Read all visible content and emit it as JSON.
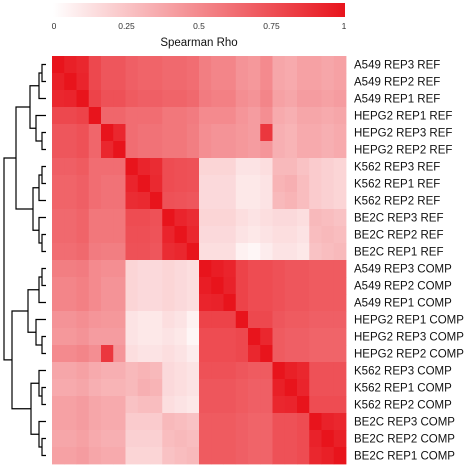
{
  "chart_data": {
    "type": "heatmap",
    "color_low": "#ffffff",
    "color_high": "#e8141c",
    "dendrogram_color": "#000000",
    "legend": {
      "title": "Spearman Rho",
      "placement": "top",
      "ticks": [
        "0",
        "0.25",
        "0.5",
        "0.75",
        "1"
      ],
      "range": [
        0,
        1
      ]
    },
    "rows": [
      "A549 REP3 REF",
      "A549 REP2 REF",
      "A549 REP1 REF",
      "HEPG2 REP1 REF",
      "HEPG2 REP3 REF",
      "HEPG2 REP2 REF",
      "K562 REP3 REF",
      "K562 REP1 REF",
      "K562 REP2 REF",
      "BE2C REP3 REF",
      "BE2C REP2 REF",
      "BE2C REP1 REF",
      "A549 REP3 COMP",
      "A549 REP2 COMP",
      "A549 REP1 COMP",
      "HEPG2 REP1 COMP",
      "HEPG2 REP3 COMP",
      "HEPG2 REP2 COMP",
      "K562 REP3 COMP",
      "K562 REP1 COMP",
      "K562 REP2 COMP",
      "BE2C REP3 COMP",
      "BE2C REP2 COMP",
      "BE2C REP1 COMP"
    ],
    "values": [
      [
        1.0,
        0.95,
        0.92,
        0.78,
        0.72,
        0.72,
        0.68,
        0.66,
        0.66,
        0.64,
        0.64,
        0.62,
        0.55,
        0.52,
        0.52,
        0.46,
        0.44,
        0.5,
        0.38,
        0.36,
        0.4,
        0.4,
        0.38,
        0.4
      ],
      [
        0.95,
        1.0,
        0.93,
        0.78,
        0.72,
        0.72,
        0.68,
        0.66,
        0.66,
        0.64,
        0.64,
        0.62,
        0.55,
        0.52,
        0.52,
        0.46,
        0.44,
        0.5,
        0.38,
        0.36,
        0.4,
        0.4,
        0.38,
        0.4
      ],
      [
        0.92,
        0.93,
        1.0,
        0.8,
        0.74,
        0.74,
        0.7,
        0.68,
        0.68,
        0.66,
        0.66,
        0.64,
        0.56,
        0.54,
        0.54,
        0.48,
        0.46,
        0.52,
        0.4,
        0.38,
        0.42,
        0.42,
        0.4,
        0.42
      ],
      [
        0.78,
        0.78,
        0.8,
        1.0,
        0.65,
        0.65,
        0.62,
        0.62,
        0.62,
        0.58,
        0.58,
        0.56,
        0.5,
        0.5,
        0.5,
        0.45,
        0.42,
        0.48,
        0.36,
        0.34,
        0.38,
        0.38,
        0.36,
        0.38
      ],
      [
        0.72,
        0.72,
        0.74,
        0.65,
        1.0,
        0.92,
        0.62,
        0.6,
        0.6,
        0.58,
        0.58,
        0.55,
        0.48,
        0.46,
        0.46,
        0.44,
        0.42,
        0.85,
        0.34,
        0.32,
        0.36,
        0.36,
        0.34,
        0.36
      ],
      [
        0.72,
        0.72,
        0.74,
        0.65,
        0.92,
        1.0,
        0.62,
        0.6,
        0.6,
        0.58,
        0.58,
        0.55,
        0.48,
        0.46,
        0.46,
        0.44,
        0.42,
        0.45,
        0.34,
        0.32,
        0.36,
        0.36,
        0.34,
        0.36
      ],
      [
        0.68,
        0.68,
        0.7,
        0.62,
        0.62,
        0.62,
        1.0,
        0.93,
        0.9,
        0.76,
        0.75,
        0.74,
        0.18,
        0.18,
        0.18,
        0.12,
        0.12,
        0.14,
        0.3,
        0.3,
        0.26,
        0.22,
        0.2,
        0.18
      ],
      [
        0.66,
        0.66,
        0.68,
        0.62,
        0.6,
        0.6,
        0.93,
        1.0,
        0.91,
        0.76,
        0.75,
        0.74,
        0.16,
        0.16,
        0.16,
        0.1,
        0.1,
        0.12,
        0.32,
        0.34,
        0.28,
        0.22,
        0.2,
        0.18
      ],
      [
        0.66,
        0.66,
        0.68,
        0.62,
        0.6,
        0.6,
        0.9,
        0.91,
        1.0,
        0.74,
        0.73,
        0.72,
        0.16,
        0.16,
        0.16,
        0.1,
        0.1,
        0.12,
        0.3,
        0.32,
        0.28,
        0.22,
        0.2,
        0.18
      ],
      [
        0.64,
        0.64,
        0.66,
        0.58,
        0.58,
        0.58,
        0.76,
        0.76,
        0.74,
        1.0,
        0.93,
        0.9,
        0.18,
        0.18,
        0.18,
        0.14,
        0.12,
        0.14,
        0.16,
        0.16,
        0.14,
        0.3,
        0.28,
        0.26
      ],
      [
        0.64,
        0.64,
        0.66,
        0.58,
        0.58,
        0.58,
        0.75,
        0.75,
        0.73,
        0.93,
        1.0,
        0.92,
        0.16,
        0.16,
        0.16,
        0.12,
        0.1,
        0.12,
        0.14,
        0.14,
        0.12,
        0.28,
        0.3,
        0.28
      ],
      [
        0.62,
        0.62,
        0.64,
        0.56,
        0.55,
        0.55,
        0.74,
        0.74,
        0.72,
        0.9,
        0.92,
        1.0,
        0.14,
        0.14,
        0.14,
        0.06,
        0.04,
        0.08,
        0.12,
        0.12,
        0.1,
        0.26,
        0.28,
        0.3
      ],
      [
        0.55,
        0.55,
        0.56,
        0.5,
        0.48,
        0.48,
        0.18,
        0.16,
        0.16,
        0.18,
        0.16,
        0.14,
        1.0,
        0.96,
        0.93,
        0.8,
        0.76,
        0.76,
        0.74,
        0.72,
        0.72,
        0.7,
        0.7,
        0.7
      ],
      [
        0.52,
        0.52,
        0.54,
        0.5,
        0.46,
        0.46,
        0.18,
        0.16,
        0.16,
        0.18,
        0.16,
        0.14,
        0.96,
        1.0,
        0.94,
        0.8,
        0.76,
        0.76,
        0.74,
        0.72,
        0.72,
        0.7,
        0.7,
        0.7
      ],
      [
        0.52,
        0.52,
        0.54,
        0.5,
        0.46,
        0.46,
        0.18,
        0.16,
        0.16,
        0.18,
        0.16,
        0.14,
        0.93,
        0.94,
        1.0,
        0.8,
        0.76,
        0.76,
        0.74,
        0.72,
        0.72,
        0.7,
        0.7,
        0.7
      ],
      [
        0.46,
        0.46,
        0.48,
        0.45,
        0.44,
        0.44,
        0.12,
        0.1,
        0.1,
        0.14,
        0.12,
        0.06,
        0.8,
        0.8,
        0.8,
        1.0,
        0.78,
        0.78,
        0.72,
        0.7,
        0.7,
        0.68,
        0.68,
        0.68
      ],
      [
        0.44,
        0.44,
        0.46,
        0.42,
        0.42,
        0.42,
        0.12,
        0.1,
        0.1,
        0.12,
        0.1,
        0.04,
        0.76,
        0.76,
        0.76,
        0.78,
        1.0,
        0.92,
        0.7,
        0.68,
        0.68,
        0.66,
        0.66,
        0.66
      ],
      [
        0.5,
        0.5,
        0.52,
        0.48,
        0.85,
        0.45,
        0.14,
        0.12,
        0.12,
        0.14,
        0.12,
        0.08,
        0.76,
        0.76,
        0.76,
        0.78,
        0.92,
        1.0,
        0.7,
        0.68,
        0.68,
        0.66,
        0.66,
        0.66
      ],
      [
        0.38,
        0.38,
        0.4,
        0.36,
        0.34,
        0.34,
        0.3,
        0.32,
        0.3,
        0.16,
        0.14,
        0.12,
        0.74,
        0.74,
        0.74,
        0.72,
        0.7,
        0.7,
        1.0,
        0.95,
        0.92,
        0.74,
        0.74,
        0.74
      ],
      [
        0.36,
        0.36,
        0.38,
        0.34,
        0.32,
        0.32,
        0.3,
        0.34,
        0.32,
        0.16,
        0.14,
        0.12,
        0.72,
        0.72,
        0.72,
        0.7,
        0.68,
        0.68,
        0.95,
        1.0,
        0.93,
        0.74,
        0.74,
        0.74
      ],
      [
        0.4,
        0.4,
        0.42,
        0.38,
        0.36,
        0.36,
        0.26,
        0.28,
        0.28,
        0.14,
        0.12,
        0.1,
        0.72,
        0.72,
        0.72,
        0.7,
        0.68,
        0.68,
        0.92,
        0.93,
        1.0,
        0.76,
        0.76,
        0.76
      ],
      [
        0.4,
        0.4,
        0.42,
        0.38,
        0.36,
        0.36,
        0.22,
        0.22,
        0.22,
        0.3,
        0.28,
        0.26,
        0.7,
        0.7,
        0.7,
        0.68,
        0.66,
        0.66,
        0.74,
        0.74,
        0.76,
        1.0,
        0.94,
        0.92
      ],
      [
        0.38,
        0.38,
        0.4,
        0.36,
        0.34,
        0.34,
        0.2,
        0.2,
        0.2,
        0.28,
        0.3,
        0.28,
        0.7,
        0.7,
        0.7,
        0.68,
        0.66,
        0.66,
        0.74,
        0.74,
        0.76,
        0.94,
        1.0,
        0.95
      ],
      [
        0.4,
        0.4,
        0.42,
        0.38,
        0.36,
        0.36,
        0.18,
        0.18,
        0.18,
        0.26,
        0.28,
        0.3,
        0.7,
        0.7,
        0.7,
        0.68,
        0.66,
        0.66,
        0.74,
        0.74,
        0.76,
        0.92,
        0.95,
        1.0
      ]
    ]
  }
}
